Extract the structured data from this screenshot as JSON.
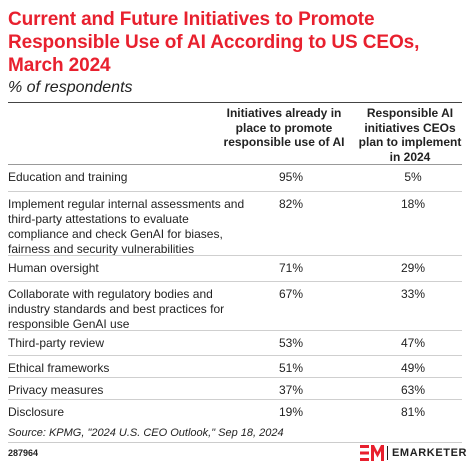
{
  "title": "Current and Future Initiatives to Promote Responsible Use of AI According to US CEOs, March 2024",
  "subtitle": "% of respondents",
  "chart_data": {
    "type": "table",
    "columns": [
      "Initiatives already in place to promote responsible use of AI",
      "Responsible AI initiatives CEOs plan to implement in 2024"
    ],
    "rows": [
      {
        "label": "Education and training",
        "values": [
          "95%",
          "5%"
        ]
      },
      {
        "label": "Implement regular internal assessments and third-party attestations to evaluate compliance and check GenAI for biases, fairness and security vulnerabilities",
        "values": [
          "82%",
          "18%"
        ]
      },
      {
        "label": "Human oversight",
        "values": [
          "71%",
          "29%"
        ]
      },
      {
        "label": "Collaborate with regulatory bodies and industry standards and best practices for responsible GenAI use",
        "values": [
          "67%",
          "33%"
        ]
      },
      {
        "label": "Third-party review",
        "values": [
          "53%",
          "47%"
        ]
      },
      {
        "label": "Ethical frameworks",
        "values": [
          "51%",
          "49%"
        ]
      },
      {
        "label": "Privacy measures",
        "values": [
          "37%",
          "63%"
        ]
      },
      {
        "label": "Disclosure",
        "values": [
          "19%",
          "81%"
        ]
      }
    ]
  },
  "source": "Source: KPMG, \"2024 U.S. CEO Outlook,\" Sep 18, 2024",
  "chart_id": "287964",
  "brand": {
    "name": "EMARKETER",
    "color": "#e8202e"
  }
}
